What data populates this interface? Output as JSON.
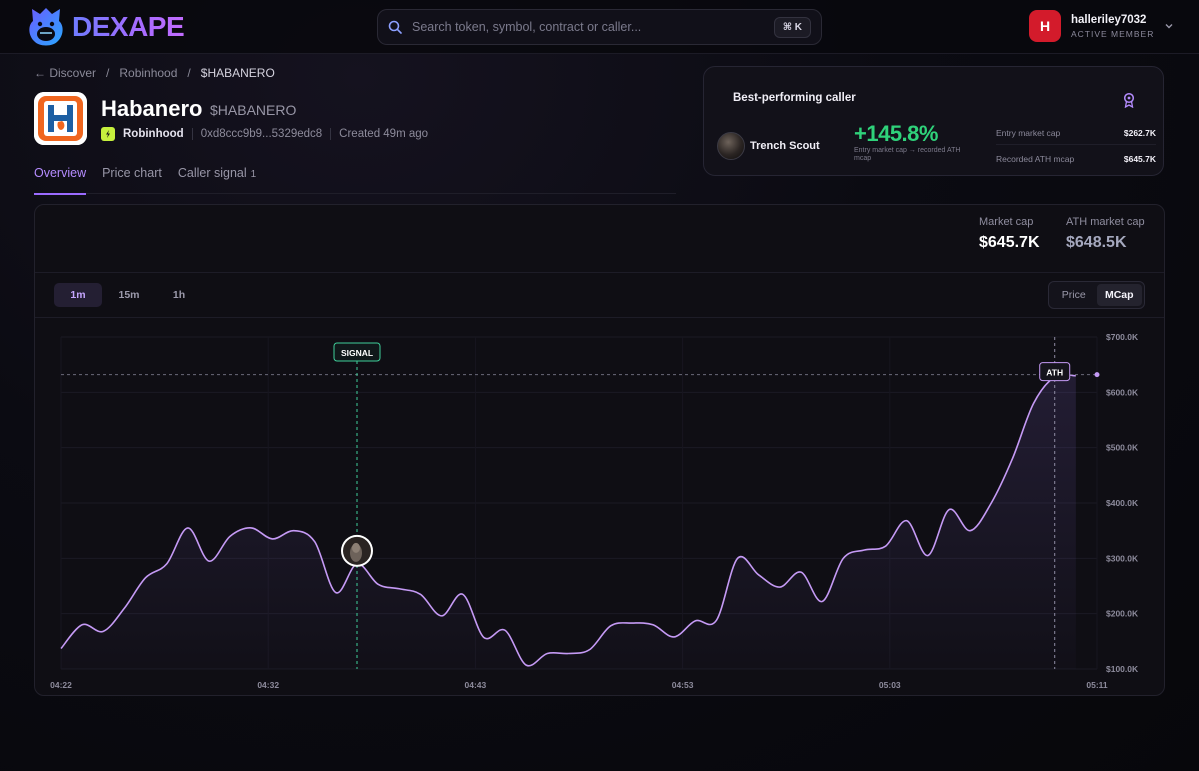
{
  "brand": {
    "name": "DEXAPE"
  },
  "search": {
    "placeholder": "Search token, symbol, contract or caller...",
    "shortcut": "⌘ K"
  },
  "user": {
    "initial": "H",
    "name": "halleriley7032",
    "role": "ACTIVE MEMBER"
  },
  "breadcrumb": {
    "back": "← Discover",
    "sep": "/",
    "chain": "Robinhood",
    "current": "$HABANERO"
  },
  "token": {
    "name": "Habanero",
    "ticker": "$HABANERO",
    "chain": "Robinhood",
    "contract": "0xd8ccc9b9...5329edc8",
    "created": "Created 49m ago",
    "logo_letter": "H"
  },
  "tabs": [
    {
      "label": "Overview"
    },
    {
      "label": "Price chart"
    },
    {
      "label": "Caller signal",
      "count": "1"
    }
  ],
  "best_caller": {
    "title": "Best-performing caller",
    "name": "Trench Scout",
    "gain": "+145.8%",
    "gain_note": "Entry market cap → recorded ATH mcap",
    "entry_label": "Entry market cap",
    "entry_value": "$262.7K",
    "ath_label": "Recorded ATH mcap",
    "ath_value": "$645.7K"
  },
  "stats": {
    "mcap_label": "Market cap",
    "mcap_value": "$645.7K",
    "ath_label": "ATH market cap",
    "ath_value": "$648.5K"
  },
  "timeframes": [
    "1m",
    "15m",
    "1h"
  ],
  "modes": [
    "Price",
    "MCap"
  ],
  "colors": {
    "accent": "#a66bff",
    "line": "#c59af5",
    "signal": "#3fcf9a",
    "gain": "#2fd27a"
  },
  "chart_data": {
    "type": "line",
    "series_unit": "market cap",
    "x_ticks": [
      "04:22",
      "04:32",
      "04:43",
      "04:53",
      "05:03",
      "05:11"
    ],
    "y_ticks": [
      "$700.0K",
      "$600.0K",
      "$500.0K",
      "$400.0K",
      "$300.0K",
      "$200.0K",
      "$100.0K"
    ],
    "ylim": [
      100,
      700
    ],
    "x_range_minutes": [
      0,
      49
    ],
    "values": [
      [
        0,
        137
      ],
      [
        1,
        180
      ],
      [
        2,
        168
      ],
      [
        3,
        210
      ],
      [
        4,
        265
      ],
      [
        5,
        290
      ],
      [
        6,
        355
      ],
      [
        7,
        295
      ],
      [
        8,
        340
      ],
      [
        9,
        355
      ],
      [
        10,
        335
      ],
      [
        11,
        350
      ],
      [
        12,
        330
      ],
      [
        13,
        238
      ],
      [
        14,
        290
      ],
      [
        15,
        253
      ],
      [
        16,
        245
      ],
      [
        17,
        235
      ],
      [
        18,
        196
      ],
      [
        19,
        235
      ],
      [
        20,
        157
      ],
      [
        21,
        170
      ],
      [
        22,
        107
      ],
      [
        23,
        128
      ],
      [
        24,
        128
      ],
      [
        25,
        135
      ],
      [
        26,
        178
      ],
      [
        27,
        183
      ],
      [
        28,
        180
      ],
      [
        29,
        158
      ],
      [
        30,
        187
      ],
      [
        31,
        188
      ],
      [
        32,
        300
      ],
      [
        33,
        270
      ],
      [
        34,
        248
      ],
      [
        35,
        275
      ],
      [
        36,
        222
      ],
      [
        37,
        300
      ],
      [
        38,
        315
      ],
      [
        39,
        322
      ],
      [
        40,
        368
      ],
      [
        41,
        305
      ],
      [
        42,
        388
      ],
      [
        43,
        350
      ],
      [
        44,
        400
      ],
      [
        45,
        480
      ],
      [
        46,
        580
      ],
      [
        47,
        628
      ],
      [
        48,
        630
      ]
    ],
    "signal_x": 14,
    "signal_label": "SIGNAL",
    "ath_x": 47,
    "ath_value": 632,
    "ath_label": "ATH"
  }
}
